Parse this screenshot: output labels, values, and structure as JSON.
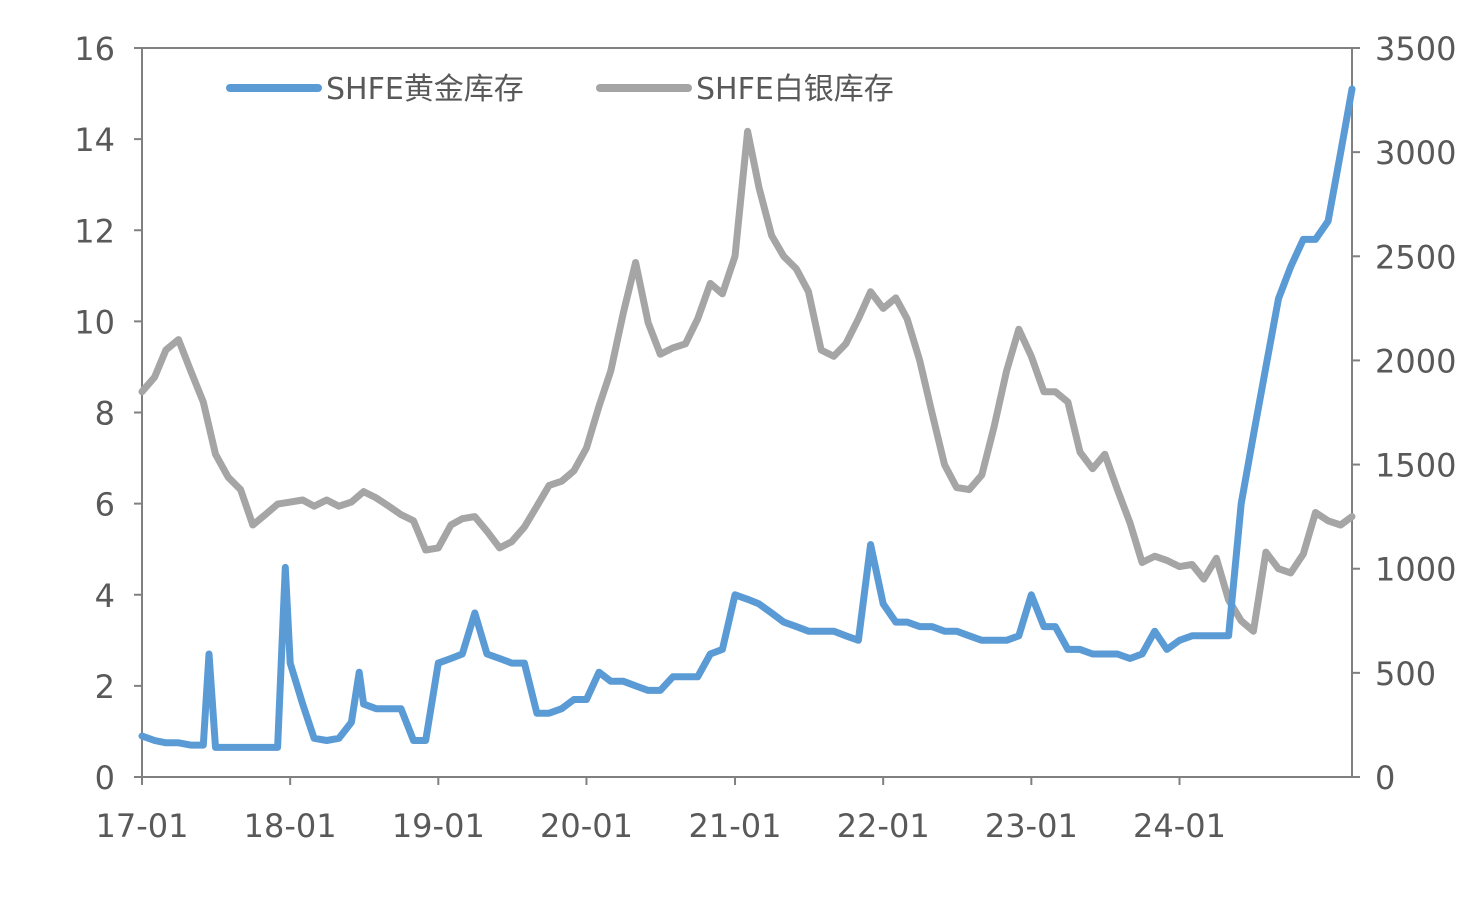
{
  "chart_data": {
    "type": "line",
    "title": "",
    "xlabel": "",
    "ylabel": "",
    "y2label": "",
    "x_tick_labels": [
      "17-01",
      "18-01",
      "19-01",
      "20-01",
      "21-01",
      "22-01",
      "23-01",
      "24-01"
    ],
    "ylim_left": [
      0,
      16
    ],
    "ylim_right": [
      0,
      3500
    ],
    "y_left_ticks": [
      "0",
      "2",
      "4",
      "6",
      "8",
      "10",
      "12",
      "14",
      "16"
    ],
    "y_right_ticks": [
      "0",
      "500",
      "1000",
      "1500",
      "2000",
      "2500",
      "3000",
      "3500"
    ],
    "grid": false,
    "legend_position": "top-left",
    "colors": {
      "gold": "#5b9bd5",
      "silver": "#a5a5a5",
      "axis": "#808080",
      "text": "#595959"
    },
    "series": [
      {
        "name": "SHFE黄金库存",
        "axis": "left",
        "points": [
          [
            "2017-01",
            0.9
          ],
          [
            "2017-02",
            0.8
          ],
          [
            "2017-03",
            0.75
          ],
          [
            "2017-04",
            0.75
          ],
          [
            "2017-05",
            0.7
          ],
          [
            "2017-06",
            0.7
          ],
          [
            "2017-06-15",
            2.7
          ],
          [
            "2017-07",
            0.65
          ],
          [
            "2017-08",
            0.65
          ],
          [
            "2017-09",
            0.65
          ],
          [
            "2017-10",
            0.65
          ],
          [
            "2017-11",
            0.65
          ],
          [
            "2017-12",
            0.65
          ],
          [
            "2017-12-20",
            4.6
          ],
          [
            "2018-01",
            2.5
          ],
          [
            "2018-02",
            1.6
          ],
          [
            "2018-03",
            0.85
          ],
          [
            "2018-04",
            0.8
          ],
          [
            "2018-05",
            0.85
          ],
          [
            "2018-06",
            1.2
          ],
          [
            "2018-06-20",
            2.3
          ],
          [
            "2018-07",
            1.6
          ],
          [
            "2018-08",
            1.5
          ],
          [
            "2018-09",
            1.5
          ],
          [
            "2018-10",
            1.5
          ],
          [
            "2018-11",
            0.8
          ],
          [
            "2018-12",
            0.8
          ],
          [
            "2019-01",
            2.5
          ],
          [
            "2019-02",
            2.6
          ],
          [
            "2019-03",
            2.7
          ],
          [
            "2019-04",
            3.6
          ],
          [
            "2019-05",
            2.7
          ],
          [
            "2019-06",
            2.6
          ],
          [
            "2019-07",
            2.5
          ],
          [
            "2019-08",
            2.5
          ],
          [
            "2019-09",
            1.4
          ],
          [
            "2019-10",
            1.4
          ],
          [
            "2019-11",
            1.5
          ],
          [
            "2019-12",
            1.7
          ],
          [
            "2020-01",
            1.7
          ],
          [
            "2020-02",
            2.3
          ],
          [
            "2020-03",
            2.1
          ],
          [
            "2020-04",
            2.1
          ],
          [
            "2020-05",
            2.0
          ],
          [
            "2020-06",
            1.9
          ],
          [
            "2020-07",
            1.9
          ],
          [
            "2020-08",
            2.2
          ],
          [
            "2020-09",
            2.2
          ],
          [
            "2020-10",
            2.2
          ],
          [
            "2020-11",
            2.7
          ],
          [
            "2020-12",
            2.8
          ],
          [
            "2021-01",
            4.0
          ],
          [
            "2021-02",
            3.9
          ],
          [
            "2021-03",
            3.8
          ],
          [
            "2021-04",
            3.6
          ],
          [
            "2021-05",
            3.4
          ],
          [
            "2021-06",
            3.3
          ],
          [
            "2021-07",
            3.2
          ],
          [
            "2021-08",
            3.2
          ],
          [
            "2021-09",
            3.2
          ],
          [
            "2021-10",
            3.1
          ],
          [
            "2021-11",
            3.0
          ],
          [
            "2021-12",
            5.1
          ],
          [
            "2022-01",
            3.8
          ],
          [
            "2022-02",
            3.4
          ],
          [
            "2022-03",
            3.4
          ],
          [
            "2022-04",
            3.3
          ],
          [
            "2022-05",
            3.3
          ],
          [
            "2022-06",
            3.2
          ],
          [
            "2022-07",
            3.2
          ],
          [
            "2022-08",
            3.1
          ],
          [
            "2022-09",
            3.0
          ],
          [
            "2022-10",
            3.0
          ],
          [
            "2022-11",
            3.0
          ],
          [
            "2022-12",
            3.1
          ],
          [
            "2023-01",
            4.0
          ],
          [
            "2023-02",
            3.3
          ],
          [
            "2023-03",
            3.3
          ],
          [
            "2023-04",
            2.8
          ],
          [
            "2023-05",
            2.8
          ],
          [
            "2023-06",
            2.7
          ],
          [
            "2023-07",
            2.7
          ],
          [
            "2023-08",
            2.7
          ],
          [
            "2023-09",
            2.6
          ],
          [
            "2023-10",
            2.7
          ],
          [
            "2023-11",
            3.2
          ],
          [
            "2023-12",
            2.8
          ],
          [
            "2024-01",
            3.0
          ],
          [
            "2024-02",
            3.1
          ],
          [
            "2024-03",
            3.1
          ],
          [
            "2024-04",
            3.1
          ],
          [
            "2024-05",
            3.1
          ],
          [
            "2024-06",
            6.0
          ],
          [
            "2024-07",
            7.5
          ],
          [
            "2024-08",
            9.0
          ],
          [
            "2024-09",
            10.5
          ],
          [
            "2024-10",
            11.2
          ],
          [
            "2024-11",
            11.8
          ],
          [
            "2024-12",
            11.8
          ],
          [
            "2025-01",
            12.2
          ],
          [
            "2025-02",
            13.7
          ],
          [
            "2025-03",
            15.1
          ]
        ]
      },
      {
        "name": "SHFE白银库存",
        "axis": "right",
        "points": [
          [
            "2017-01",
            1850
          ],
          [
            "2017-02",
            1920
          ],
          [
            "2017-03",
            2050
          ],
          [
            "2017-04",
            2100
          ],
          [
            "2017-05",
            1950
          ],
          [
            "2017-06",
            1800
          ],
          [
            "2017-07",
            1550
          ],
          [
            "2017-08",
            1440
          ],
          [
            "2017-09",
            1380
          ],
          [
            "2017-10",
            1210
          ],
          [
            "2017-11",
            1260
          ],
          [
            "2017-12",
            1310
          ],
          [
            "2018-01",
            1320
          ],
          [
            "2018-02",
            1330
          ],
          [
            "2018-03",
            1300
          ],
          [
            "2018-04",
            1330
          ],
          [
            "2018-05",
            1300
          ],
          [
            "2018-06",
            1320
          ],
          [
            "2018-07",
            1370
          ],
          [
            "2018-08",
            1340
          ],
          [
            "2018-09",
            1300
          ],
          [
            "2018-10",
            1260
          ],
          [
            "2018-11",
            1230
          ],
          [
            "2018-12",
            1090
          ],
          [
            "2019-01",
            1100
          ],
          [
            "2019-02",
            1210
          ],
          [
            "2019-03",
            1240
          ],
          [
            "2019-04",
            1250
          ],
          [
            "2019-05",
            1180
          ],
          [
            "2019-06",
            1100
          ],
          [
            "2019-07",
            1130
          ],
          [
            "2019-08",
            1200
          ],
          [
            "2019-09",
            1300
          ],
          [
            "2019-10",
            1400
          ],
          [
            "2019-11",
            1420
          ],
          [
            "2019-12",
            1470
          ],
          [
            "2020-01",
            1580
          ],
          [
            "2020-02",
            1780
          ],
          [
            "2020-03",
            1950
          ],
          [
            "2020-04",
            2230
          ],
          [
            "2020-05",
            2470
          ],
          [
            "2020-06",
            2180
          ],
          [
            "2020-07",
            2030
          ],
          [
            "2020-08",
            2060
          ],
          [
            "2020-09",
            2080
          ],
          [
            "2020-10",
            2200
          ],
          [
            "2020-11",
            2370
          ],
          [
            "2020-12",
            2320
          ],
          [
            "2021-01",
            2500
          ],
          [
            "2021-02",
            3100
          ],
          [
            "2021-03",
            2830
          ],
          [
            "2021-04",
            2600
          ],
          [
            "2021-05",
            2500
          ],
          [
            "2021-06",
            2440
          ],
          [
            "2021-07",
            2330
          ],
          [
            "2021-08",
            2050
          ],
          [
            "2021-09",
            2020
          ],
          [
            "2021-10",
            2080
          ],
          [
            "2021-11",
            2200
          ],
          [
            "2021-12",
            2330
          ],
          [
            "2022-01",
            2250
          ],
          [
            "2022-02",
            2300
          ],
          [
            "2022-03",
            2200
          ],
          [
            "2022-04",
            2000
          ],
          [
            "2022-05",
            1750
          ],
          [
            "2022-06",
            1500
          ],
          [
            "2022-07",
            1390
          ],
          [
            "2022-08",
            1380
          ],
          [
            "2022-09",
            1450
          ],
          [
            "2022-10",
            1680
          ],
          [
            "2022-11",
            1950
          ],
          [
            "2022-12",
            2150
          ],
          [
            "2023-01",
            2020
          ],
          [
            "2023-02",
            1850
          ],
          [
            "2023-03",
            1850
          ],
          [
            "2023-04",
            1800
          ],
          [
            "2023-05",
            1560
          ],
          [
            "2023-06",
            1480
          ],
          [
            "2023-07",
            1550
          ],
          [
            "2023-08",
            1380
          ],
          [
            "2023-09",
            1220
          ],
          [
            "2023-10",
            1030
          ],
          [
            "2023-11",
            1060
          ],
          [
            "2023-12",
            1040
          ],
          [
            "2024-01",
            1010
          ],
          [
            "2024-02",
            1020
          ],
          [
            "2024-03",
            950
          ],
          [
            "2024-04",
            1050
          ],
          [
            "2024-05",
            850
          ],
          [
            "2024-06",
            750
          ],
          [
            "2024-07",
            700
          ],
          [
            "2024-08",
            1080
          ],
          [
            "2024-09",
            1000
          ],
          [
            "2024-10",
            980
          ],
          [
            "2024-11",
            1070
          ],
          [
            "2024-12",
            1270
          ],
          [
            "2025-01",
            1230
          ],
          [
            "2025-02",
            1210
          ],
          [
            "2025-03",
            1250
          ]
        ]
      }
    ]
  }
}
